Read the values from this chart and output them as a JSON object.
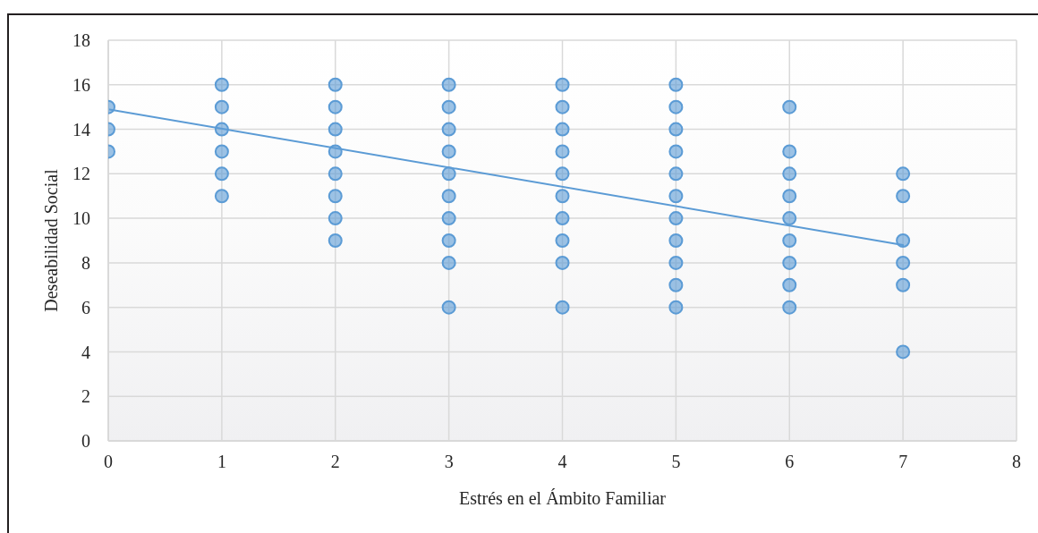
{
  "chart_data": {
    "type": "scatter",
    "xlabel": "Estrés en el Ámbito Familiar",
    "ylabel": "Deseabilidad Social",
    "xlim": [
      0,
      8
    ],
    "xticks": [
      0,
      1,
      2,
      3,
      4,
      5,
      6,
      7,
      8
    ],
    "ylim": [
      0,
      18
    ],
    "yticks": [
      0,
      2,
      4,
      6,
      8,
      10,
      12,
      14,
      16,
      18
    ],
    "grid": true,
    "series": [
      {
        "color": "#5b9bd5",
        "marker": "circle",
        "x": [
          0,
          0,
          0,
          1,
          1,
          1,
          1,
          1,
          1,
          2,
          2,
          2,
          2,
          2,
          2,
          2,
          2,
          3,
          3,
          3,
          3,
          3,
          3,
          3,
          3,
          3,
          3,
          4,
          4,
          4,
          4,
          4,
          4,
          4,
          4,
          4,
          4,
          5,
          5,
          5,
          5,
          5,
          5,
          5,
          5,
          5,
          5,
          5,
          6,
          6,
          6,
          6,
          6,
          6,
          6,
          6,
          6,
          7,
          7,
          7,
          7,
          7,
          7
        ],
        "values": [
          15,
          14,
          13,
          16,
          15,
          14,
          13,
          12,
          11,
          16,
          15,
          14,
          13,
          12,
          11,
          10,
          9,
          16,
          15,
          14,
          13,
          12,
          11,
          10,
          9,
          8,
          6,
          16,
          15,
          14,
          13,
          12,
          11,
          10,
          9,
          8,
          6,
          16,
          15,
          14,
          13,
          12,
          11,
          10,
          9,
          8,
          7,
          6,
          15,
          13,
          12,
          11,
          10,
          9,
          8,
          7,
          6,
          12,
          11,
          9,
          8,
          7,
          4
        ]
      },
      {
        "type": "line",
        "color": "#5b9bd5",
        "x": [
          0,
          7
        ],
        "values": [
          14.9,
          8.8
        ]
      }
    ]
  }
}
